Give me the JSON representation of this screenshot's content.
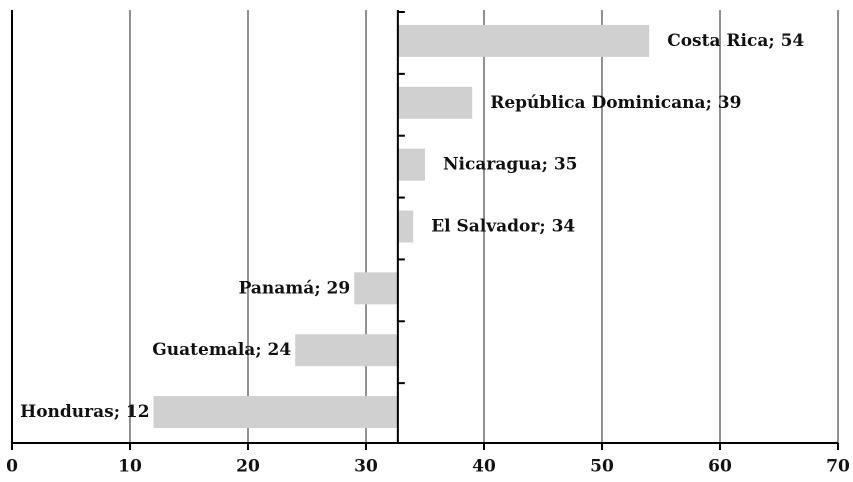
{
  "chart_data": {
    "type": "bar",
    "orientation": "horizontal",
    "categories": [
      "Costa Rica",
      "República Dominicana",
      "Nicaragua",
      "El Salvador",
      "Panamá",
      "Guatemala",
      "Honduras"
    ],
    "values": [
      54,
      39,
      35,
      34,
      29,
      24,
      12
    ],
    "label_separator": "; ",
    "color": "#d0d0d0",
    "baseline": 32.7,
    "xlim": [
      0,
      70
    ],
    "xticks": [
      0,
      10,
      20,
      30,
      40,
      50,
      60,
      70
    ],
    "grid": true
  }
}
